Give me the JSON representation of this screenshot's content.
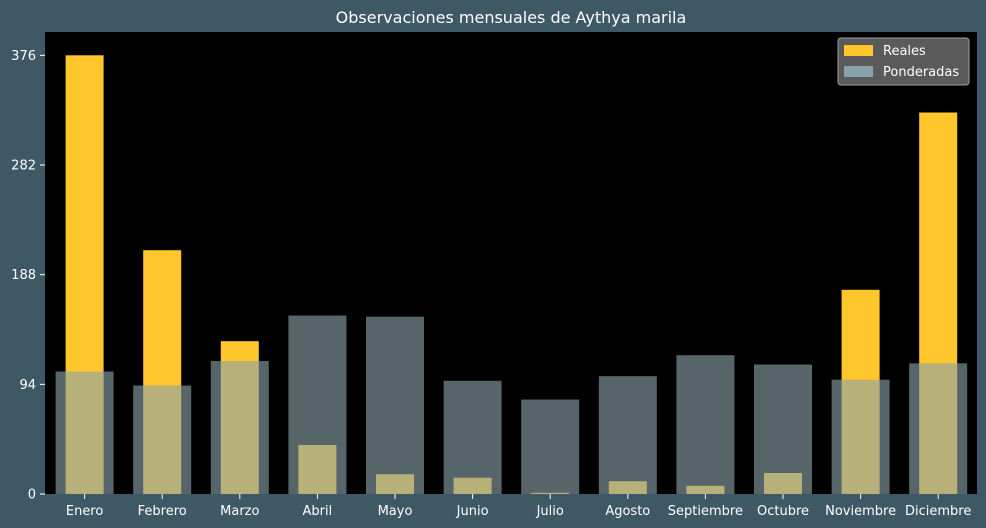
{
  "chart_data": {
    "type": "bar",
    "title": "Observaciones mensuales de Aythya marila",
    "xlabel": "",
    "ylabel": "",
    "categories": [
      "Enero",
      "Febrero",
      "Marzo",
      "Abril",
      "Mayo",
      "Junio",
      "Julio",
      "Agosto",
      "Septiembre",
      "Octubre",
      "Noviembre",
      "Diciembre"
    ],
    "series": [
      {
        "name": "Reales",
        "color": "#ffc72c",
        "values": [
          376,
          209,
          131,
          42,
          17,
          14,
          1,
          11,
          7,
          18,
          175,
          327
        ]
      },
      {
        "name": "Ponderadas",
        "color": "#8aa3aa",
        "values": [
          105,
          93,
          114,
          153,
          152,
          97,
          81,
          101,
          119,
          111,
          98,
          112
        ]
      }
    ],
    "yticks": [
      0,
      94,
      188,
      282,
      376
    ],
    "ylim": [
      0,
      396
    ],
    "grid": false,
    "legend_position": "top-right",
    "background": "#000000",
    "figure_background": "#3f5866"
  }
}
